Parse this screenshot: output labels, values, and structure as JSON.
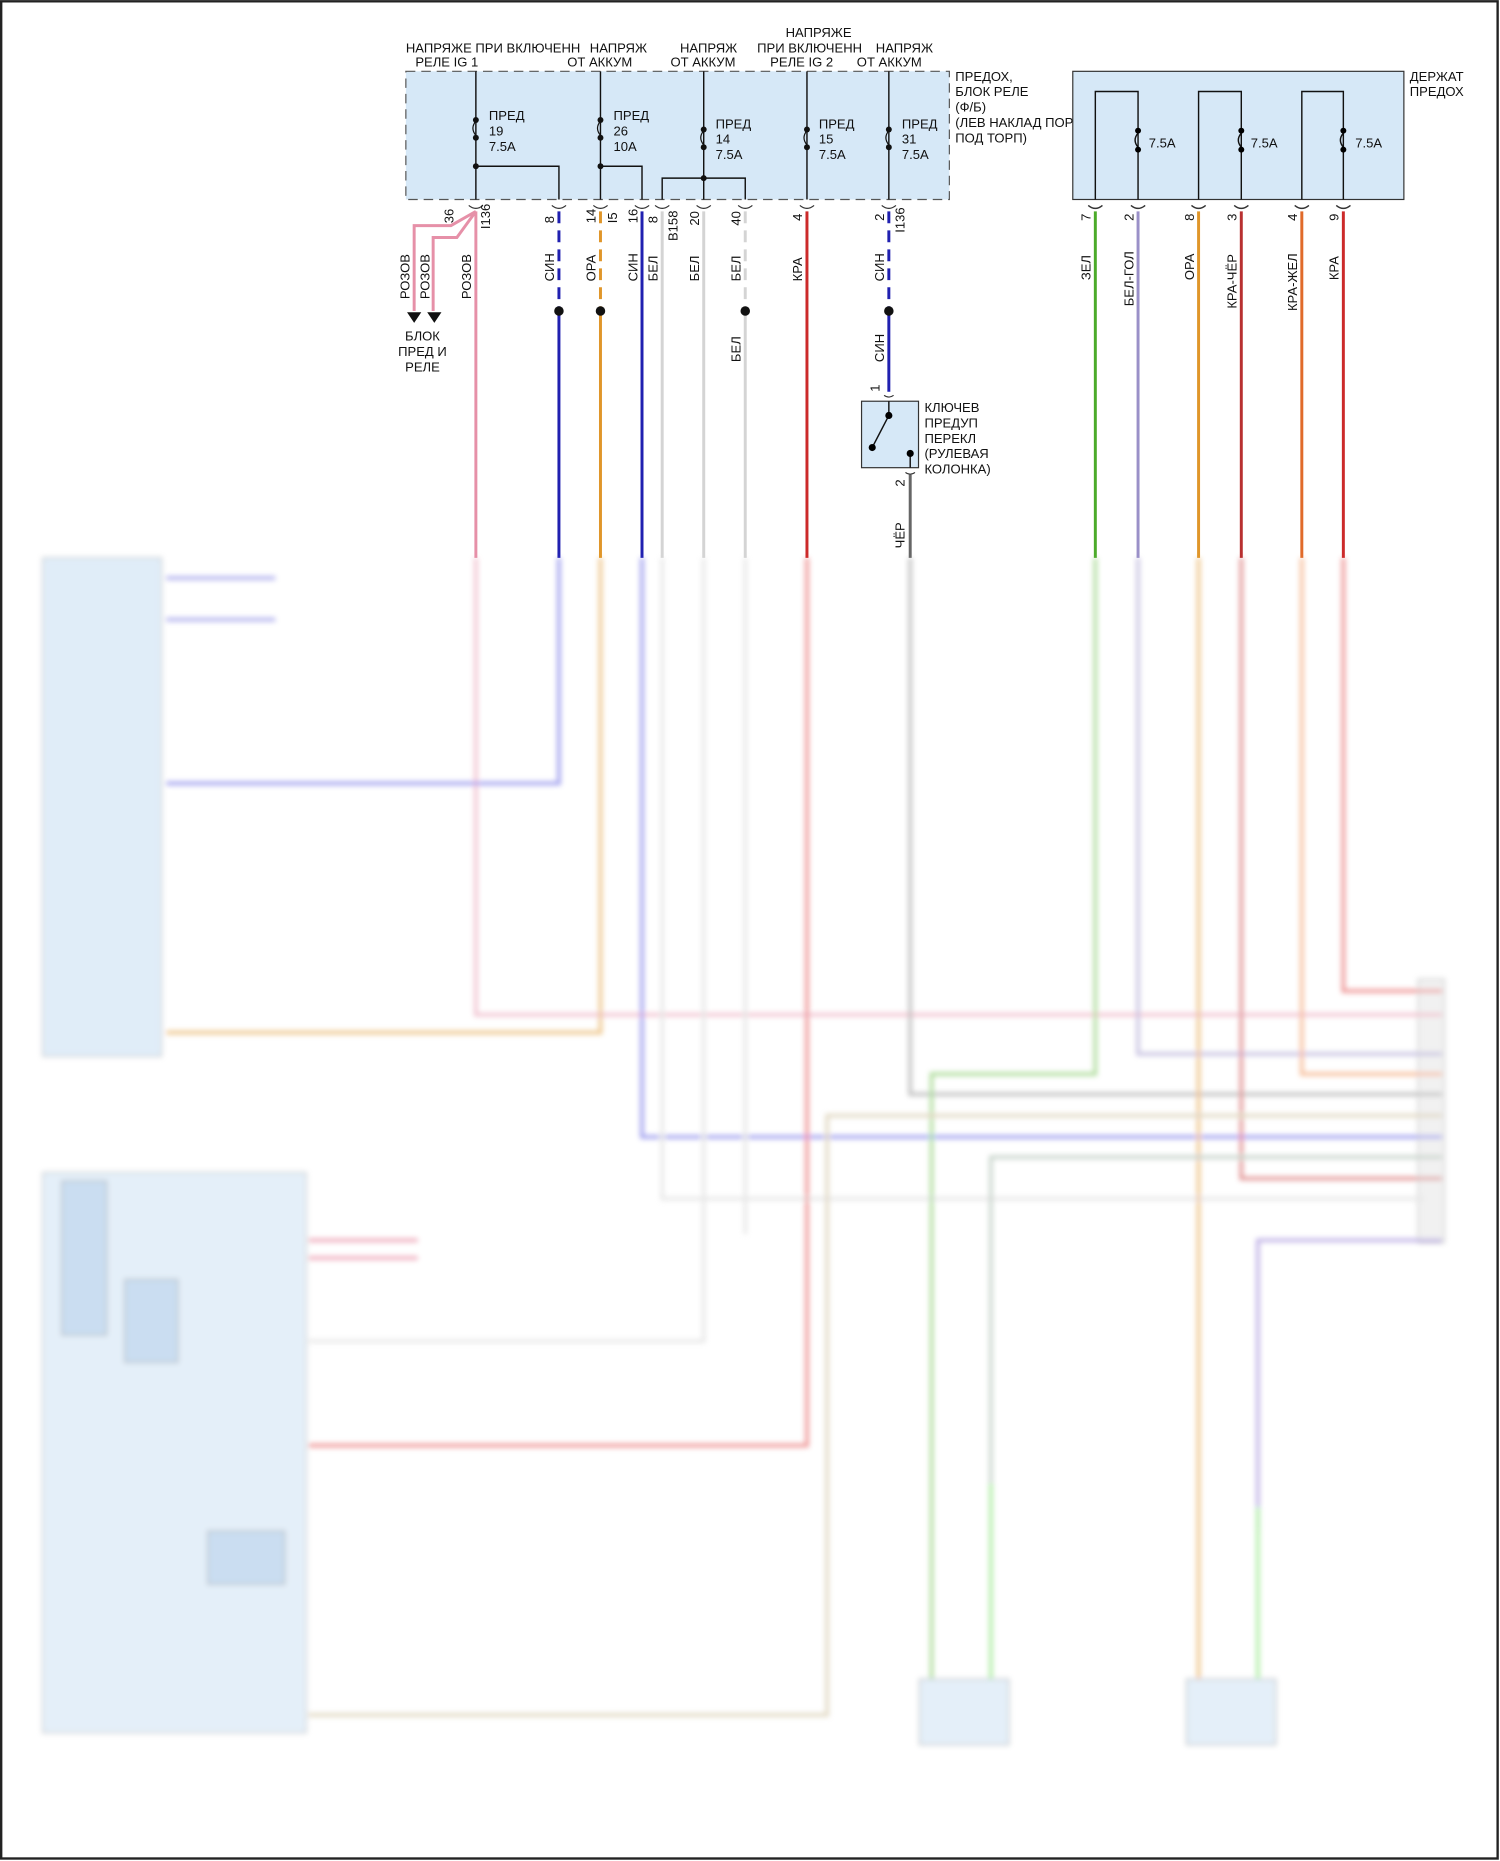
{
  "fuse_relay_box": {
    "title_lines": [
      "ПРЕДОХ,",
      "БЛОК РЕЛЕ",
      "(Ф/Б)",
      "(ЛЕВ НАКЛАД ПОРОГА",
      "ПОД ТОРП)"
    ],
    "supply_labels": {
      "ig1_line1": "НАПРЯЖЕ ПРИ ВКЛЮЧЕНН",
      "ig1_line2": "РЕЛЕ IG 1",
      "batt1_line1": "НАПРЯЖ",
      "batt1_line2": "ОТ АККУМ",
      "batt2_line1": "НАПРЯЖ",
      "batt2_line2": "ОТ АККУМ",
      "ig2_line0": "НАПРЯЖЕ",
      "ig2_line1": "ПРИ ВКЛЮЧЕНН",
      "ig2_line2": "РЕЛЕ IG 2",
      "batt3_line1": "НАПРЯЖ",
      "batt3_line2": "ОТ АККУМ"
    },
    "fuses": [
      {
        "name": "ПРЕД",
        "number": "19",
        "rating": "7.5A"
      },
      {
        "name": "ПРЕД",
        "number": "26",
        "rating": "10A"
      },
      {
        "name": "ПРЕД",
        "number": "14",
        "rating": "7.5A"
      },
      {
        "name": "ПРЕД",
        "number": "15",
        "rating": "7.5A"
      },
      {
        "name": "ПРЕД",
        "number": "31",
        "rating": "7.5A"
      }
    ],
    "pins": [
      {
        "pin": "36",
        "connector": "I136"
      },
      {
        "pin": "8",
        "connector": ""
      },
      {
        "pin": "14",
        "connector": "I5"
      },
      {
        "pin": "16",
        "connector": ""
      },
      {
        "pin": "8",
        "connector": "B158"
      },
      {
        "pin": "20",
        "connector": ""
      },
      {
        "pin": "40",
        "connector": ""
      },
      {
        "pin": "4",
        "connector": ""
      },
      {
        "pin": "2",
        "connector": "I136"
      }
    ],
    "wires": [
      "РОЗОВ",
      "РОЗОВ",
      "РОЗОВ",
      "СИН",
      "ОРА",
      "СИН",
      "БЕЛ",
      "БЕЛ",
      "БЕЛ",
      "КРА",
      "СИН"
    ],
    "lower_wire_labels": {
      "white40": "БЕЛ",
      "blue2": "СИН"
    },
    "destination": [
      "БЛОК",
      "ПРЕД И",
      "РЕЛЕ"
    ]
  },
  "fuse_holder": {
    "title_lines": [
      "ДЕРЖАТ",
      "ПРЕДОХ"
    ],
    "fuses": [
      "7.5A",
      "7.5A",
      "7.5A"
    ],
    "pins": [
      "7",
      "2",
      "8",
      "3",
      "4",
      "9"
    ],
    "wires": [
      "ЗЕЛ",
      "БЕЛ-ГОЛ",
      "ОРА",
      "КРА-ЧЁР",
      "КРА-ЖЕЛ",
      "КРА"
    ]
  },
  "key_switch": {
    "title_lines": [
      "КЛЮЧЕВ",
      "ПРЕДУП",
      "ПЕРЕКЛ",
      "(РУЛЕВАЯ",
      "КОЛОНКА)"
    ],
    "pin_in": "1",
    "pin_out": "2",
    "wire_out": "ЧЁР"
  },
  "colors": {
    "box_fill": "#d6e8f7",
    "pink": "#e690a8",
    "blue": "#2020b0",
    "orange": "#e0962a",
    "white_wire": "#d4d4d4",
    "red": "#cc2a2a",
    "green": "#4cab2a",
    "lavender": "#9a90c8",
    "black_wire": "#666666"
  }
}
